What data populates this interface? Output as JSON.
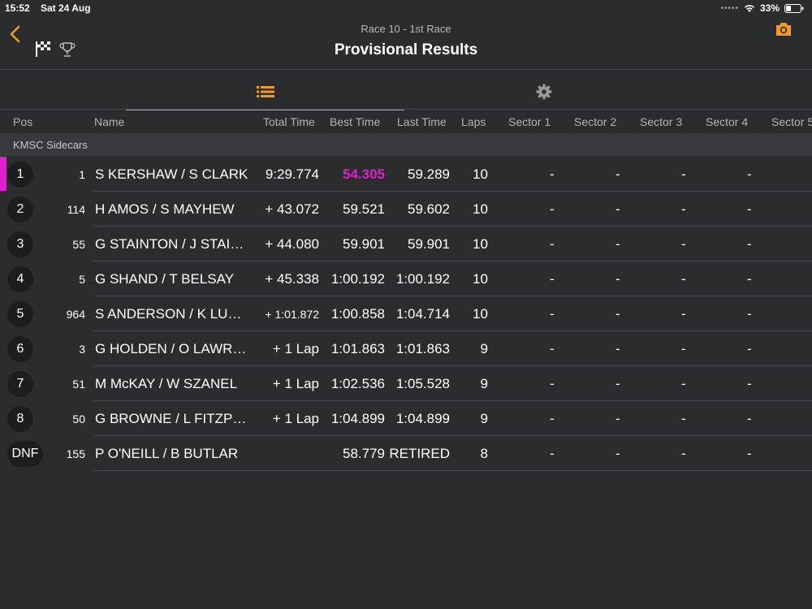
{
  "status": {
    "time": "15:52",
    "date": "Sat 24 Aug",
    "battery": "33%"
  },
  "nav": {
    "subtitle": "Race 10 - 1st Race",
    "title": "Provisional Results"
  },
  "accent": "#f39a1f",
  "fastest_color": "#e020d0",
  "columns": {
    "pos": "Pos",
    "name": "Name",
    "total": "Total Time",
    "best": "Best Time",
    "last": "Last Time",
    "laps": "Laps",
    "s1": "Sector 1",
    "s2": "Sector 2",
    "s3": "Sector 3",
    "s4": "Sector 4",
    "s5": "Sector 5"
  },
  "group": "KMSC Sidecars",
  "rows": [
    {
      "pos": "1",
      "num": "1",
      "name": "S KERSHAW / S CLARK",
      "total": "9:29.774",
      "best": "54.305",
      "last": "59.289",
      "laps": "10",
      "s1": "-",
      "s2": "-",
      "s3": "-",
      "s4": "-"
    },
    {
      "pos": "2",
      "num": "114",
      "name": "H AMOS / S MAYHEW",
      "total": "+ 43.072",
      "best": "59.521",
      "last": "59.602",
      "laps": "10",
      "s1": "-",
      "s2": "-",
      "s3": "-",
      "s4": "-"
    },
    {
      "pos": "3",
      "num": "55",
      "name": "G STAINTON / J STAI…",
      "total": "+ 44.080",
      "best": "59.901",
      "last": "59.901",
      "laps": "10",
      "s1": "-",
      "s2": "-",
      "s3": "-",
      "s4": "-"
    },
    {
      "pos": "4",
      "num": "5",
      "name": "G SHAND / T BELSAY",
      "total": "+ 45.338",
      "best": "1:00.192",
      "last": "1:00.192",
      "laps": "10",
      "s1": "-",
      "s2": "-",
      "s3": "-",
      "s4": "-"
    },
    {
      "pos": "5",
      "num": "964",
      "name": "S ANDERSON /  K LU…",
      "total": "+ 1:01.872",
      "best": "1:00.858",
      "last": "1:04.714",
      "laps": "10",
      "s1": "-",
      "s2": "-",
      "s3": "-",
      "s4": "-"
    },
    {
      "pos": "6",
      "num": "3",
      "name": "G HOLDEN / O LAWR…",
      "total": "+ 1 Lap",
      "best": "1:01.863",
      "last": "1:01.863",
      "laps": "9",
      "s1": "-",
      "s2": "-",
      "s3": "-",
      "s4": "-"
    },
    {
      "pos": "7",
      "num": "51",
      "name": "M McKAY / W SZANEL",
      "total": "+ 1 Lap",
      "best": "1:02.536",
      "last": "1:05.528",
      "laps": "9",
      "s1": "-",
      "s2": "-",
      "s3": "-",
      "s4": "-"
    },
    {
      "pos": "8",
      "num": "50",
      "name": "G BROWNE / L FITZP…",
      "total": "+ 1 Lap",
      "best": "1:04.899",
      "last": "1:04.899",
      "laps": "9",
      "s1": "-",
      "s2": "-",
      "s3": "-",
      "s4": "-"
    },
    {
      "pos": "DNF",
      "num": "155",
      "name": "P O'NEILL / B BUTLAR",
      "total": "",
      "best": "58.779",
      "last": "RETIRED",
      "laps": "8",
      "s1": "-",
      "s2": "-",
      "s3": "-",
      "s4": "-"
    }
  ]
}
